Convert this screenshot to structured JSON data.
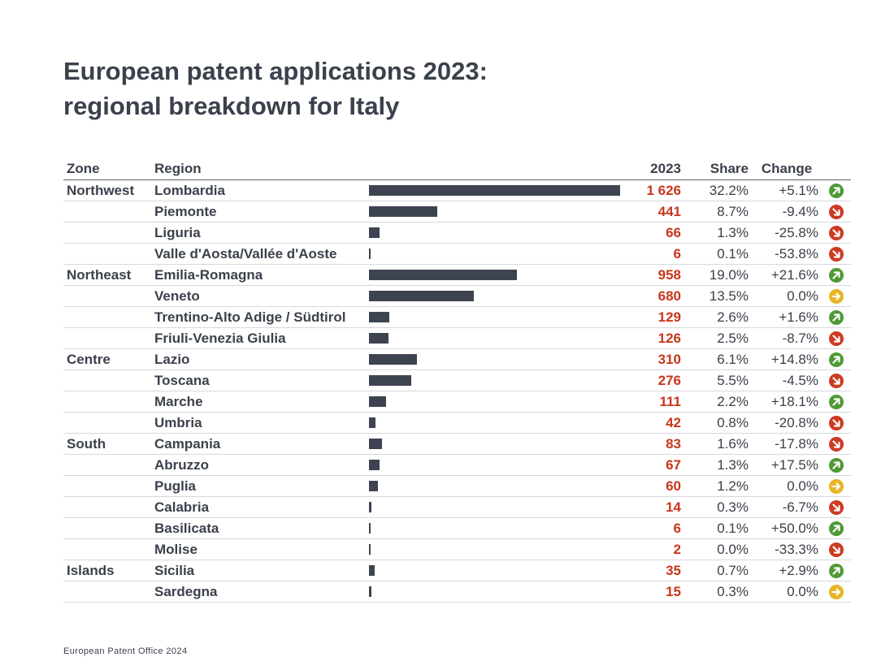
{
  "title_line1": "European patent applications 2023:",
  "title_line2": "regional breakdown for Italy",
  "footer": "European Patent Office 2024",
  "colors": {
    "bar": "#3d4350",
    "value": "#c8361d",
    "up": "#4f9a36",
    "down": "#cc3b22",
    "flat": "#e8b524"
  },
  "chart_data": {
    "type": "bar",
    "orientation": "horizontal",
    "columns": {
      "zone": "Zone",
      "region": "Region",
      "value": "2023",
      "share": "Share",
      "change": "Change"
    },
    "rows": [
      {
        "zone": "Northwest",
        "region": "Lombardia",
        "value": 1626,
        "value_label": "1 626",
        "share": "32.2%",
        "change": "+5.1%",
        "trend": "up"
      },
      {
        "zone": "",
        "region": "Piemonte",
        "value": 441,
        "value_label": "441",
        "share": "8.7%",
        "change": "-9.4%",
        "trend": "down"
      },
      {
        "zone": "",
        "region": "Liguria",
        "value": 66,
        "value_label": "66",
        "share": "1.3%",
        "change": "-25.8%",
        "trend": "down"
      },
      {
        "zone": "",
        "region": "Valle d'Aosta/Vallée d'Aoste",
        "value": 6,
        "value_label": "6",
        "share": "0.1%",
        "change": "-53.8%",
        "trend": "down"
      },
      {
        "zone": "Northeast",
        "region": "Emilia-Romagna",
        "value": 958,
        "value_label": "958",
        "share": "19.0%",
        "change": "+21.6%",
        "trend": "up"
      },
      {
        "zone": "",
        "region": "Veneto",
        "value": 680,
        "value_label": "680",
        "share": "13.5%",
        "change": "0.0%",
        "trend": "flat"
      },
      {
        "zone": "",
        "region": "Trentino-Alto Adige / Südtirol",
        "value": 129,
        "value_label": "129",
        "share": "2.6%",
        "change": "+1.6%",
        "trend": "up"
      },
      {
        "zone": "",
        "region": "Friuli-Venezia Giulia",
        "value": 126,
        "value_label": "126",
        "share": "2.5%",
        "change": "-8.7%",
        "trend": "down"
      },
      {
        "zone": "Centre",
        "region": "Lazio",
        "value": 310,
        "value_label": "310",
        "share": "6.1%",
        "change": "+14.8%",
        "trend": "up"
      },
      {
        "zone": "",
        "region": "Toscana",
        "value": 276,
        "value_label": "276",
        "share": "5.5%",
        "change": "-4.5%",
        "trend": "down"
      },
      {
        "zone": "",
        "region": "Marche",
        "value": 111,
        "value_label": "111",
        "share": "2.2%",
        "change": "+18.1%",
        "trend": "up"
      },
      {
        "zone": "",
        "region": "Umbria",
        "value": 42,
        "value_label": "42",
        "share": "0.8%",
        "change": "-20.8%",
        "trend": "down"
      },
      {
        "zone": "South",
        "region": "Campania",
        "value": 83,
        "value_label": "83",
        "share": "1.6%",
        "change": "-17.8%",
        "trend": "down"
      },
      {
        "zone": "",
        "region": "Abruzzo",
        "value": 67,
        "value_label": "67",
        "share": "1.3%",
        "change": "+17.5%",
        "trend": "up"
      },
      {
        "zone": "",
        "region": "Puglia",
        "value": 60,
        "value_label": "60",
        "share": "1.2%",
        "change": "0.0%",
        "trend": "flat"
      },
      {
        "zone": "",
        "region": "Calabria",
        "value": 14,
        "value_label": "14",
        "share": "0.3%",
        "change": "-6.7%",
        "trend": "down"
      },
      {
        "zone": "",
        "region": "Basilicata",
        "value": 6,
        "value_label": "6",
        "share": "0.1%",
        "change": "+50.0%",
        "trend": "up"
      },
      {
        "zone": "",
        "region": "Molise",
        "value": 2,
        "value_label": "2",
        "share": "0.0%",
        "change": "-33.3%",
        "trend": "down"
      },
      {
        "zone": "Islands",
        "region": "Sicilia",
        "value": 35,
        "value_label": "35",
        "share": "0.7%",
        "change": "+2.9%",
        "trend": "up"
      },
      {
        "zone": "",
        "region": "Sardegna",
        "value": 15,
        "value_label": "15",
        "share": "0.3%",
        "change": "0.0%",
        "trend": "flat"
      }
    ]
  }
}
